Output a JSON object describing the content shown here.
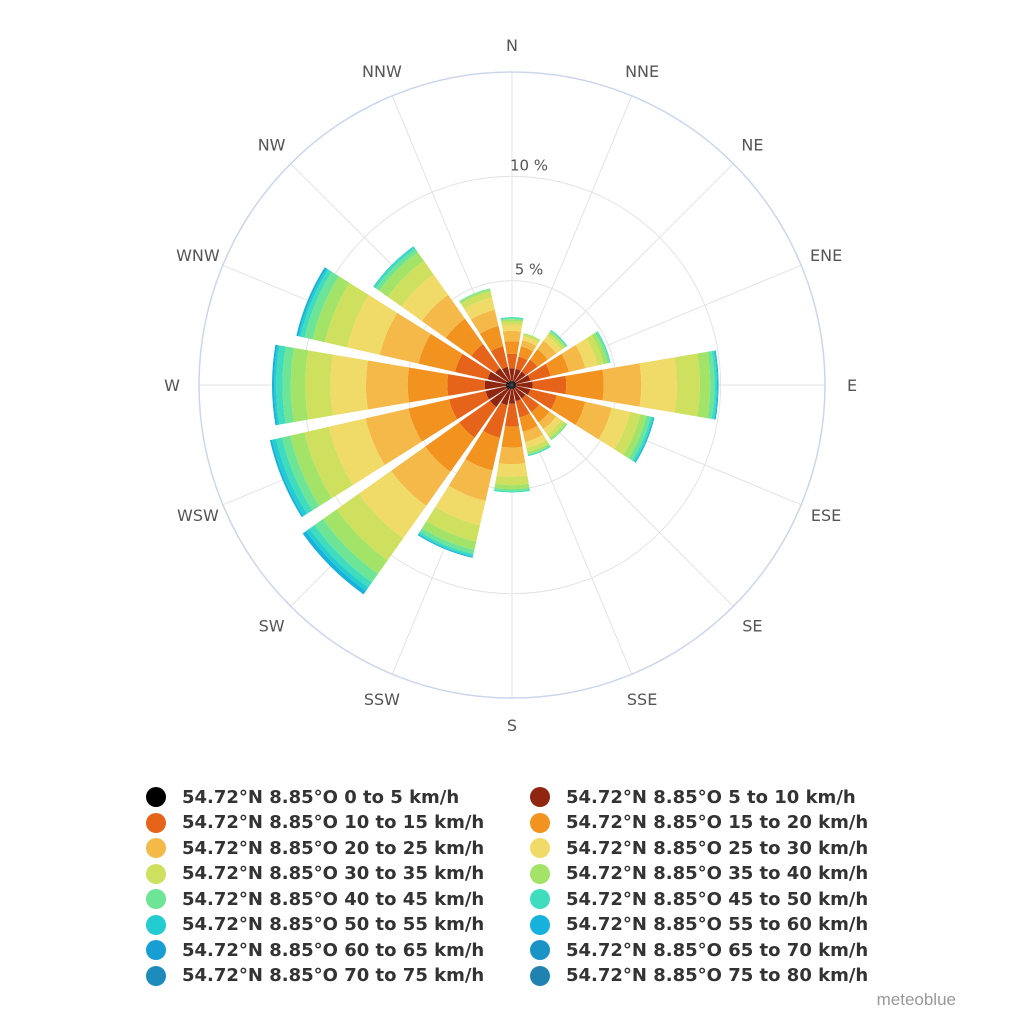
{
  "chart_data": {
    "type": "windrose",
    "directions": [
      "N",
      "NNE",
      "NE",
      "ENE",
      "E",
      "ESE",
      "SE",
      "SSE",
      "S",
      "SSW",
      "SW",
      "WSW",
      "W",
      "WNW",
      "NW",
      "NNW"
    ],
    "ring_labels": [
      "5 %",
      "10 %"
    ],
    "ring_values": [
      5,
      10
    ],
    "rmax": 15,
    "speed_bins": [
      {
        "name": "54.72°N 8.85°O 0 to 5 km/h",
        "color": "#000000"
      },
      {
        "name": "54.72°N 8.85°O 5 to 10 km/h",
        "color": "#8f2610"
      },
      {
        "name": "54.72°N 8.85°O 10 to 15 km/h",
        "color": "#e5641a"
      },
      {
        "name": "54.72°N 8.85°O 15 to 20 km/h",
        "color": "#f2921f"
      },
      {
        "name": "54.72°N 8.85°O 20 to 25 km/h",
        "color": "#f5b94a"
      },
      {
        "name": "54.72°N 8.85°O 25 to 30 km/h",
        "color": "#f0da68"
      },
      {
        "name": "54.72°N 8.85°O 30 to 35 km/h",
        "color": "#cfe05e"
      },
      {
        "name": "54.72°N 8.85°O 35 to 40 km/h",
        "color": "#a3e468"
      },
      {
        "name": "54.72°N 8.85°O 40 to 45 km/h",
        "color": "#6ee496"
      },
      {
        "name": "54.72°N 8.85°O 45 to 50 km/h",
        "color": "#3fdcbd"
      },
      {
        "name": "54.72°N 8.85°O 50 to 55 km/h",
        "color": "#22ccd0"
      },
      {
        "name": "54.72°N 8.85°O 55 to 60 km/h",
        "color": "#16b2dc"
      },
      {
        "name": "54.72°N 8.85°O 60 to 65 km/h",
        "color": "#179ed2"
      },
      {
        "name": "54.72°N 8.85°O 65 to 70 km/h",
        "color": "#1a94c6"
      },
      {
        "name": "54.72°N 8.85°O 70 to 75 km/h",
        "color": "#1b8cbc"
      },
      {
        "name": "54.72°N 8.85°O 75 to 80 km/h",
        "color": "#1f82b0"
      }
    ],
    "series": [
      {
        "direction": "N",
        "values": [
          0.2,
          0.6,
          0.7,
          0.6,
          0.5,
          0.3,
          0.15,
          0.1,
          0.05,
          0.05
        ]
      },
      {
        "direction": "NNE",
        "values": [
          0.2,
          0.6,
          0.6,
          0.5,
          0.3,
          0.2,
          0.1,
          0.05
        ]
      },
      {
        "direction": "NE",
        "values": [
          0.2,
          0.6,
          0.7,
          0.6,
          0.5,
          0.3,
          0.15,
          0.1,
          0.05,
          0.05
        ]
      },
      {
        "direction": "ENE",
        "values": [
          0.2,
          0.7,
          1.0,
          0.9,
          0.8,
          0.6,
          0.3,
          0.2,
          0.1,
          0.05
        ]
      },
      {
        "direction": "E",
        "values": [
          0.2,
          0.8,
          1.6,
          1.8,
          1.8,
          1.7,
          1.1,
          0.5,
          0.2,
          0.1,
          0.05,
          0.05
        ]
      },
      {
        "direction": "ESE",
        "values": [
          0.2,
          0.7,
          1.3,
          1.4,
          1.3,
          0.9,
          0.5,
          0.3,
          0.2,
          0.1,
          0.05,
          0.05
        ]
      },
      {
        "direction": "SE",
        "values": [
          0.2,
          0.6,
          0.8,
          0.6,
          0.4,
          0.3,
          0.2,
          0.1,
          0.05
        ]
      },
      {
        "direction": "SSE",
        "values": [
          0.2,
          0.6,
          0.8,
          0.7,
          0.5,
          0.3,
          0.2,
          0.1,
          0.05,
          0.05
        ]
      },
      {
        "direction": "S",
        "values": [
          0.2,
          0.7,
          1.1,
          1.0,
          0.8,
          0.6,
          0.4,
          0.2,
          0.1,
          0.05
        ]
      },
      {
        "direction": "SSW",
        "values": [
          0.2,
          0.8,
          1.6,
          1.6,
          1.5,
          1.2,
          0.8,
          0.4,
          0.2,
          0.1,
          0.05,
          0.05
        ]
      },
      {
        "direction": "SW",
        "values": [
          0.3,
          1.0,
          1.8,
          2.0,
          2.0,
          1.9,
          1.3,
          0.8,
          0.5,
          0.3,
          0.2,
          0.2
        ]
      },
      {
        "direction": "WSW",
        "values": [
          0.3,
          1.0,
          1.8,
          2.0,
          2.1,
          1.8,
          1.2,
          0.7,
          0.4,
          0.3,
          0.2,
          0.1
        ]
      },
      {
        "direction": "W",
        "values": [
          0.3,
          1.0,
          1.8,
          1.9,
          2.0,
          1.7,
          1.2,
          0.7,
          0.4,
          0.3,
          0.1,
          0.1
        ]
      },
      {
        "direction": "WNW",
        "values": [
          0.3,
          0.9,
          1.6,
          1.8,
          1.9,
          1.6,
          1.1,
          0.6,
          0.4,
          0.2,
          0.1,
          0.1
        ]
      },
      {
        "direction": "NW",
        "values": [
          0.2,
          0.8,
          1.4,
          1.5,
          1.4,
          1.2,
          0.8,
          0.5,
          0.2,
          0.1,
          0.05
        ]
      },
      {
        "direction": "NNW",
        "values": [
          0.2,
          0.7,
          1.0,
          1.0,
          0.8,
          0.6,
          0.3,
          0.1,
          0.05
        ]
      }
    ],
    "grid": true,
    "legend_position": "bottom"
  },
  "credit": "meteoblue"
}
